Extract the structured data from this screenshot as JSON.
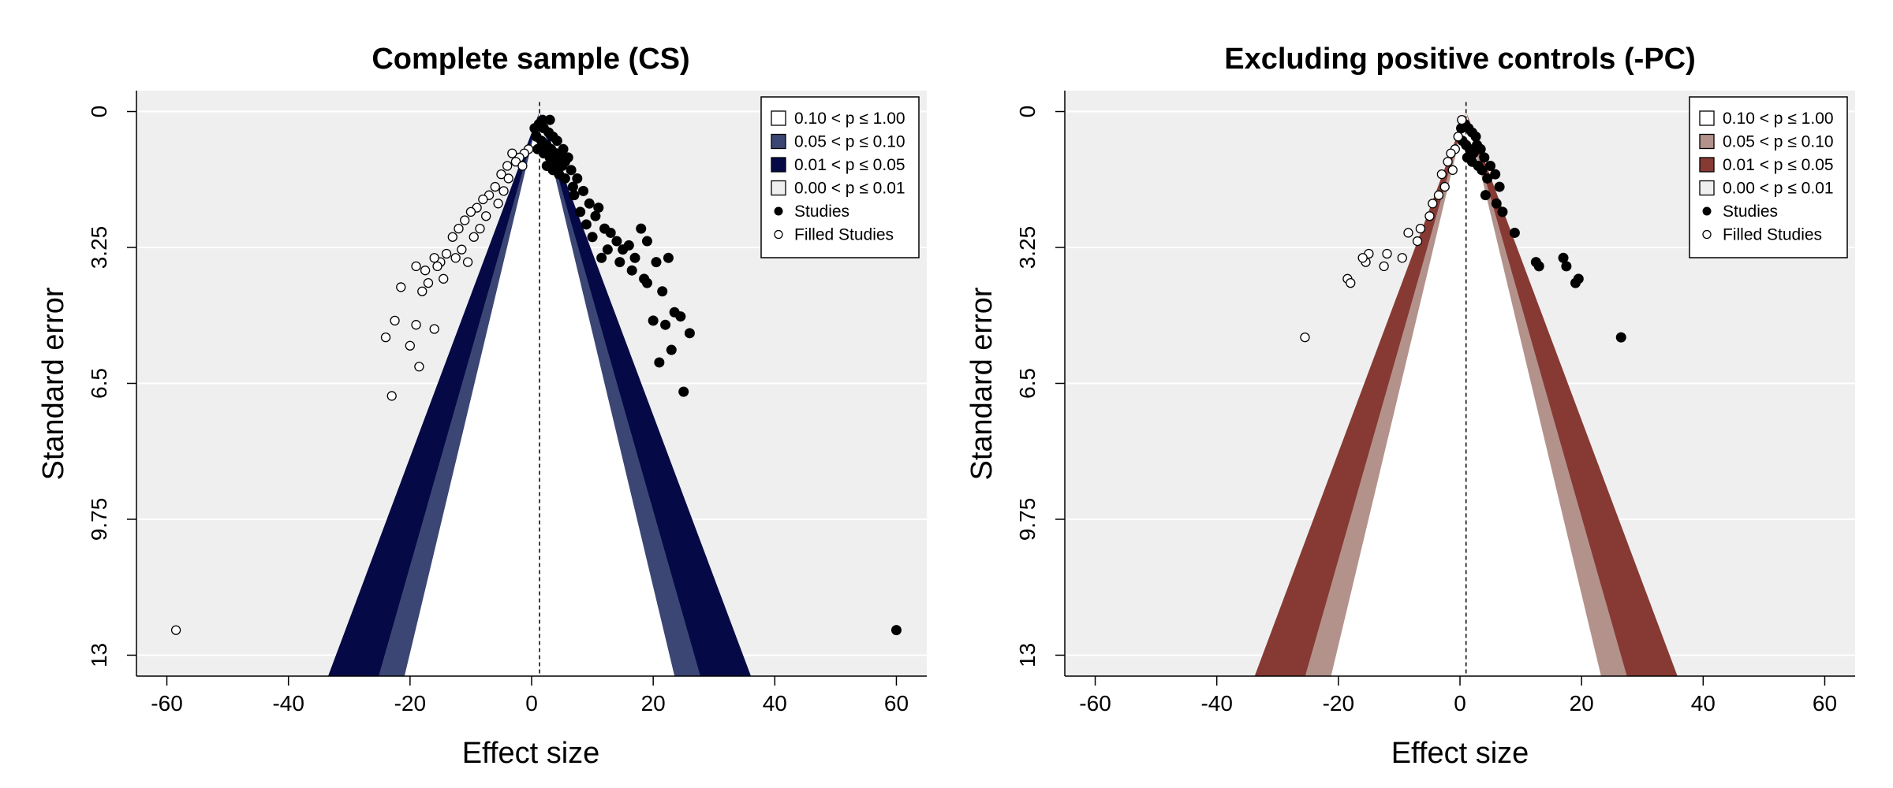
{
  "chart_data": [
    {
      "type": "scatter",
      "subtype": "contour-enhanced funnel plot",
      "title": "Complete sample (CS)",
      "xlabel": "Effect size",
      "ylabel": "Standard error",
      "xlim": [
        -65,
        65
      ],
      "ylim": [
        13.5,
        -0.5
      ],
      "y_reversed": true,
      "xticks": [
        -60,
        -40,
        -20,
        0,
        20,
        40,
        60
      ],
      "yticks": [
        0,
        3.25,
        6.5,
        9.75,
        13
      ],
      "ytick_labels": [
        "0",
        "3.25",
        "6.5",
        "9.75",
        "13"
      ],
      "reference_line_x": 1.3,
      "contour_colors": {
        "p10": "#3b4674",
        "p05": "#050a46"
      },
      "legend": {
        "placement": "top-right",
        "items": [
          {
            "label": "0.10 < p ≤ 1.00",
            "kind": "swatch",
            "color": "#ffffff"
          },
          {
            "label": "0.05 < p ≤ 0.10",
            "kind": "swatch",
            "color": "#3b4674"
          },
          {
            "label": "0.01 < p ≤ 0.05",
            "kind": "swatch",
            "color": "#050a46"
          },
          {
            "label": "0.00 < p ≤ 0.01",
            "kind": "swatch",
            "color": "#efefef"
          },
          {
            "label": "Studies",
            "kind": "filled"
          },
          {
            "label": "Filled Studies",
            "kind": "hollow"
          }
        ]
      },
      "series": [
        {
          "name": "Studies",
          "marker": "filled",
          "points": [
            [
              0.5,
              0.4
            ],
            [
              1.2,
              0.3
            ],
            [
              2.0,
              0.4
            ],
            [
              2.8,
              0.5
            ],
            [
              3.5,
              0.6
            ],
            [
              4.2,
              0.7
            ],
            [
              0.8,
              0.6
            ],
            [
              1.6,
              0.7
            ],
            [
              2.4,
              0.8
            ],
            [
              3.2,
              0.9
            ],
            [
              4.0,
              1.0
            ],
            [
              4.8,
              1.1
            ],
            [
              5.5,
              1.2
            ],
            [
              1.0,
              0.9
            ],
            [
              2.0,
              1.0
            ],
            [
              3.0,
              1.1
            ],
            [
              4.0,
              1.2
            ],
            [
              5.0,
              1.3
            ],
            [
              6.0,
              1.1
            ],
            [
              2.5,
              1.3
            ],
            [
              3.5,
              1.4
            ],
            [
              4.5,
              1.5
            ],
            [
              5.5,
              1.6
            ],
            [
              6.5,
              1.4
            ],
            [
              7.5,
              1.6
            ],
            [
              3.0,
              0.2
            ],
            [
              1.8,
              0.2
            ],
            [
              5.2,
              0.9
            ],
            [
              6.8,
              1.8
            ],
            [
              7.0,
              2.0
            ],
            [
              8.5,
              1.9
            ],
            [
              9.5,
              2.2
            ],
            [
              8.0,
              2.4
            ],
            [
              10.5,
              2.5
            ],
            [
              9.0,
              2.7
            ],
            [
              11.0,
              2.3
            ],
            [
              12.0,
              2.8
            ],
            [
              10.0,
              3.0
            ],
            [
              13.0,
              2.9
            ],
            [
              12.5,
              3.3
            ],
            [
              14.0,
              3.1
            ],
            [
              11.5,
              3.5
            ],
            [
              15.0,
              3.3
            ],
            [
              14.5,
              3.6
            ],
            [
              16.0,
              3.2
            ],
            [
              17.0,
              3.5
            ],
            [
              18.0,
              2.8
            ],
            [
              19.0,
              3.1
            ],
            [
              16.5,
              3.8
            ],
            [
              18.5,
              4.0
            ],
            [
              20.5,
              3.6
            ],
            [
              22.5,
              3.5
            ],
            [
              19.0,
              4.1
            ],
            [
              21.5,
              4.3
            ],
            [
              20.0,
              5.0
            ],
            [
              23.5,
              4.8
            ],
            [
              22.0,
              5.1
            ],
            [
              24.5,
              4.9
            ],
            [
              26.0,
              5.3
            ],
            [
              23.0,
              5.7
            ],
            [
              21.0,
              6.0
            ],
            [
              25.0,
              6.7
            ],
            [
              60.0,
              12.4
            ]
          ]
        },
        {
          "name": "Filled Studies",
          "marker": "hollow",
          "points": [
            [
              -0.5,
              0.9
            ],
            [
              -1.2,
              1.0
            ],
            [
              -2.0,
              1.1
            ],
            [
              -2.6,
              1.2
            ],
            [
              -3.2,
              1.0
            ],
            [
              -1.5,
              1.3
            ],
            [
              -4.0,
              1.3
            ],
            [
              -5.0,
              1.5
            ],
            [
              -3.8,
              1.6
            ],
            [
              -6.0,
              1.8
            ],
            [
              -4.6,
              1.9
            ],
            [
              -7.0,
              2.0
            ],
            [
              -5.5,
              2.2
            ],
            [
              -8.0,
              2.1
            ],
            [
              -9.0,
              2.3
            ],
            [
              -7.5,
              2.5
            ],
            [
              -10.0,
              2.4
            ],
            [
              -11.0,
              2.6
            ],
            [
              -8.5,
              2.8
            ],
            [
              -9.5,
              3.0
            ],
            [
              -12.0,
              2.8
            ],
            [
              -13.0,
              3.0
            ],
            [
              -11.5,
              3.3
            ],
            [
              -12.5,
              3.5
            ],
            [
              -14.0,
              3.4
            ],
            [
              -15.0,
              3.6
            ],
            [
              -15.5,
              3.7
            ],
            [
              -16.0,
              3.5
            ],
            [
              -10.5,
              3.6
            ],
            [
              -17.5,
              3.8
            ],
            [
              -14.5,
              4.0
            ],
            [
              -17.0,
              4.1
            ],
            [
              -19.0,
              3.7
            ],
            [
              -21.5,
              4.2
            ],
            [
              -18.0,
              4.3
            ],
            [
              -22.5,
              5.0
            ],
            [
              -19.0,
              5.1
            ],
            [
              -16.0,
              5.2
            ],
            [
              -20.0,
              5.6
            ],
            [
              -24.0,
              5.4
            ],
            [
              -18.5,
              6.1
            ],
            [
              -23.0,
              6.8
            ],
            [
              -58.5,
              12.4
            ]
          ]
        }
      ]
    },
    {
      "type": "scatter",
      "subtype": "contour-enhanced funnel plot",
      "title": "Excluding positive controls (-PC)",
      "xlabel": "Effect size",
      "ylabel": "Standard error",
      "xlim": [
        -65,
        65
      ],
      "ylim": [
        13.5,
        -0.5
      ],
      "y_reversed": true,
      "xticks": [
        -60,
        -40,
        -20,
        0,
        20,
        40,
        60
      ],
      "yticks": [
        0,
        3.25,
        6.5,
        9.75,
        13
      ],
      "ytick_labels": [
        "0",
        "3.25",
        "6.5",
        "9.75",
        "13"
      ],
      "reference_line_x": 1.0,
      "contour_colors": {
        "p10": "#b4928c",
        "p05": "#873a34"
      },
      "legend": {
        "placement": "top-right",
        "items": [
          {
            "label": "0.10 < p ≤ 1.00",
            "kind": "swatch",
            "color": "#ffffff"
          },
          {
            "label": "0.05 < p ≤ 0.10",
            "kind": "swatch",
            "color": "#b4928c"
          },
          {
            "label": "0.01 < p ≤ 0.05",
            "kind": "swatch",
            "color": "#873a34"
          },
          {
            "label": "0.00 < p ≤ 0.01",
            "kind": "swatch",
            "color": "#efefef"
          },
          {
            "label": "Studies",
            "kind": "filled"
          },
          {
            "label": "Filled Studies",
            "kind": "hollow"
          }
        ]
      },
      "series": [
        {
          "name": "Studies",
          "marker": "filled",
          "points": [
            [
              0.2,
              0.4
            ],
            [
              0.8,
              0.3
            ],
            [
              1.4,
              0.4
            ],
            [
              2.0,
              0.5
            ],
            [
              2.6,
              0.6
            ],
            [
              0.4,
              0.7
            ],
            [
              1.0,
              0.8
            ],
            [
              1.6,
              0.9
            ],
            [
              2.2,
              1.0
            ],
            [
              2.8,
              0.8
            ],
            [
              3.4,
              0.9
            ],
            [
              1.2,
              1.1
            ],
            [
              2.0,
              1.2
            ],
            [
              3.0,
              1.3
            ],
            [
              4.0,
              1.1
            ],
            [
              3.6,
              1.4
            ],
            [
              4.5,
              1.6
            ],
            [
              5.0,
              1.3
            ],
            [
              5.8,
              1.5
            ],
            [
              6.5,
              1.8
            ],
            [
              4.2,
              2.0
            ],
            [
              6.0,
              2.2
            ],
            [
              7.0,
              2.4
            ],
            [
              9.0,
              2.9
            ],
            [
              13.0,
              3.7
            ],
            [
              12.5,
              3.6
            ],
            [
              17.0,
              3.5
            ],
            [
              17.5,
              3.7
            ],
            [
              19.5,
              4.0
            ],
            [
              19.0,
              4.1
            ],
            [
              26.5,
              5.4
            ]
          ]
        },
        {
          "name": "Filled Studies",
          "marker": "hollow",
          "points": [
            [
              0.3,
              0.2
            ],
            [
              -0.3,
              0.6
            ],
            [
              -0.8,
              0.9
            ],
            [
              -1.5,
              1.0
            ],
            [
              -2.0,
              1.2
            ],
            [
              -1.2,
              1.4
            ],
            [
              -3.0,
              1.5
            ],
            [
              -2.5,
              1.8
            ],
            [
              -3.5,
              2.0
            ],
            [
              -4.5,
              2.2
            ],
            [
              -5.0,
              2.5
            ],
            [
              -6.5,
              2.8
            ],
            [
              -7.0,
              3.1
            ],
            [
              -8.5,
              2.9
            ],
            [
              -9.5,
              3.5
            ],
            [
              -12.0,
              3.4
            ],
            [
              -12.5,
              3.7
            ],
            [
              -15.0,
              3.4
            ],
            [
              -15.5,
              3.6
            ],
            [
              -16.0,
              3.5
            ],
            [
              -18.5,
              4.0
            ],
            [
              -18.0,
              4.1
            ],
            [
              -25.5,
              5.4
            ]
          ]
        }
      ]
    }
  ]
}
